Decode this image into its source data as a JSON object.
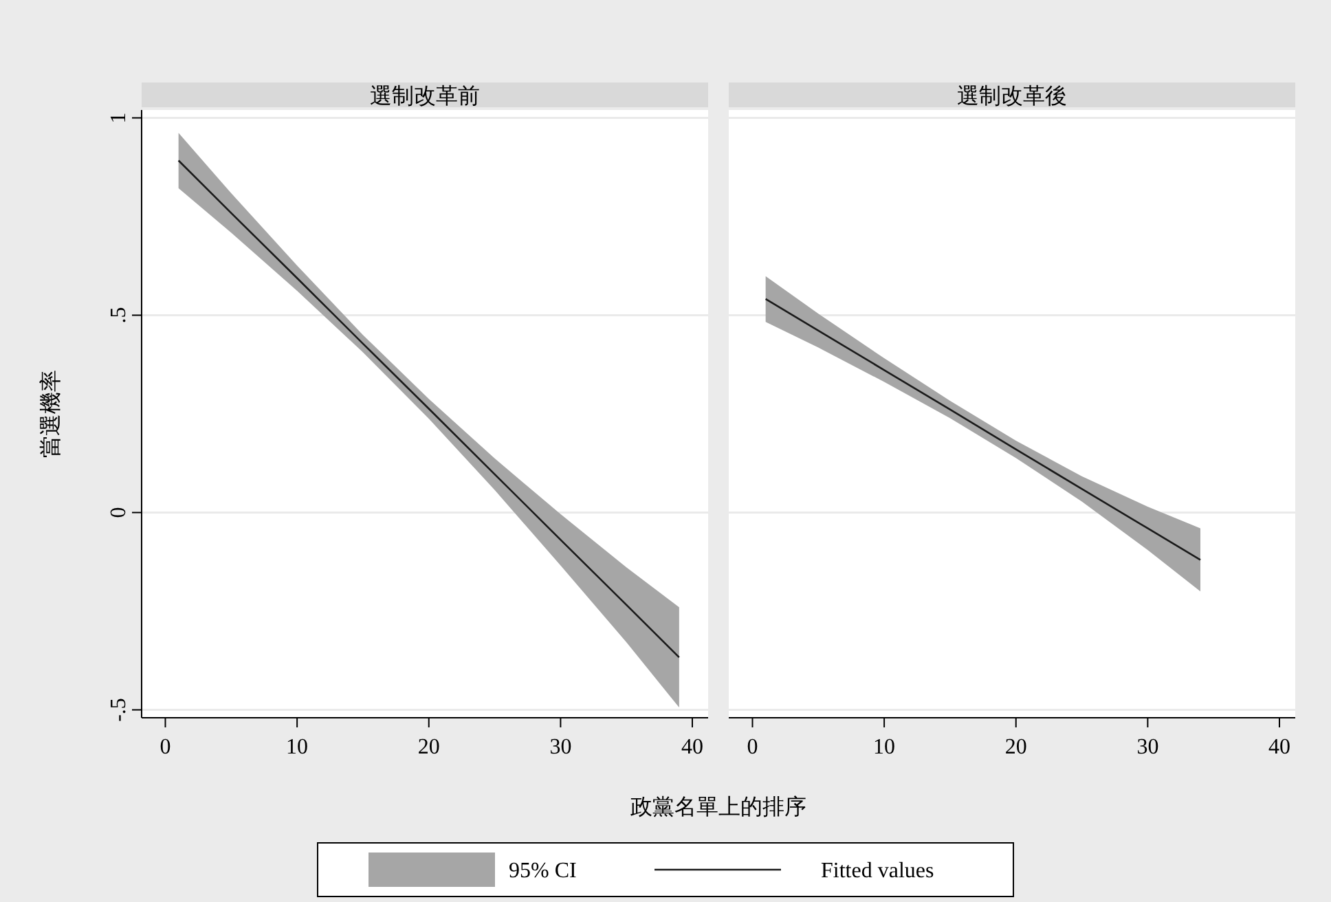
{
  "chart_data": [
    {
      "type": "line",
      "title": "選制改革前",
      "xlabel": "政黨名單上的排序",
      "ylabel": "當選機率",
      "xlim": [
        -1.8,
        41.2
      ],
      "ylim": [
        -0.52,
        1.02
      ],
      "xticks": [
        0,
        10,
        20,
        30,
        40
      ],
      "yticks": [
        {
          "value": -0.5,
          "label": "-.5"
        },
        0,
        {
          "value": 0.5,
          "label": ".5"
        },
        1
      ],
      "grid": "y",
      "legend": "bottom",
      "annotations": [
        "95% CI"
      ],
      "series": [
        {
          "name": "Fitted values",
          "type": "line",
          "color": "#1a1a1a",
          "x": [
            1,
            5,
            10,
            15,
            20,
            25,
            30,
            35,
            39
          ],
          "values": [
            0.892,
            0.759,
            0.594,
            0.428,
            0.263,
            0.097,
            -0.069,
            -0.234,
            -0.367
          ],
          "lower": [
            0.822,
            0.709,
            0.562,
            0.406,
            0.238,
            0.057,
            -0.134,
            -0.329,
            -0.494
          ],
          "upper": [
            0.962,
            0.809,
            0.626,
            0.45,
            0.288,
            0.137,
            -0.004,
            -0.139,
            -0.24
          ]
        }
      ]
    },
    {
      "type": "line",
      "title": "選制改革後",
      "xlim": [
        -1.8,
        41.2
      ],
      "ylim": [
        -0.52,
        1.02
      ],
      "xticks": [
        0,
        10,
        20,
        30,
        40
      ],
      "yticks": [
        -0.5,
        0,
        0.5,
        1
      ],
      "grid": "y",
      "tick_labels": "x",
      "series": [
        {
          "type": "line",
          "color": "#1a1a1a",
          "x": [
            1,
            5,
            10,
            15,
            20,
            25,
            30,
            34
          ],
          "values": [
            0.541,
            0.461,
            0.361,
            0.261,
            0.16,
            0.06,
            -0.04,
            -0.12
          ],
          "lower": [
            0.483,
            0.418,
            0.331,
            0.239,
            0.138,
            0.028,
            -0.095,
            -0.2
          ],
          "upper": [
            0.599,
            0.504,
            0.391,
            0.283,
            0.182,
            0.092,
            0.015,
            -0.04
          ]
        }
      ]
    }
  ]
}
